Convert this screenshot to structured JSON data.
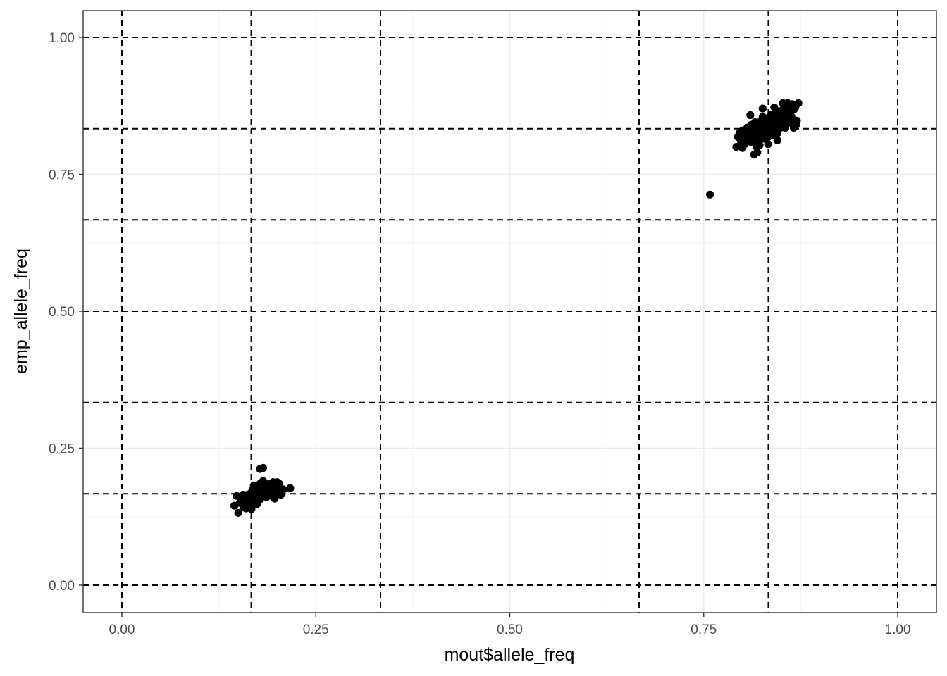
{
  "chart_data": {
    "type": "scatter",
    "xlabel": "mout$allele_freq",
    "ylabel": "emp_allele_freq",
    "xlim": [
      -0.05,
      1.05
    ],
    "ylim": [
      -0.1,
      1.05
    ],
    "x_ticks": [
      0.0,
      0.25,
      0.5,
      0.75,
      1.0
    ],
    "x_tick_labels": [
      "0.00",
      "0.25",
      "0.50",
      "0.75",
      "1.00"
    ],
    "y_ticks": [
      0.0,
      0.25,
      0.5,
      0.75,
      1.0
    ],
    "y_tick_labels": [
      "0.00",
      "0.25",
      "0.50",
      "0.75",
      "1.00"
    ],
    "grid": true,
    "theme": "bw",
    "reference_lines": {
      "style": "dashed",
      "color": "#000000",
      "vertical_x": [
        0.0,
        0.1667,
        0.3333,
        0.6667,
        0.8333,
        1.0
      ],
      "horizontal_y": [
        0.0,
        0.1667,
        0.3333,
        0.5,
        0.6667,
        0.8333,
        1.0
      ]
    },
    "point_color": "#000000",
    "series": [
      {
        "values": [
          [
            0.145,
            0.145
          ],
          [
            0.148,
            0.163
          ],
          [
            0.15,
            0.132
          ],
          [
            0.152,
            0.15
          ],
          [
            0.155,
            0.16
          ],
          [
            0.157,
            0.142
          ],
          [
            0.158,
            0.155
          ],
          [
            0.16,
            0.148
          ],
          [
            0.162,
            0.165
          ],
          [
            0.163,
            0.157
          ],
          [
            0.165,
            0.152
          ],
          [
            0.166,
            0.168
          ],
          [
            0.167,
            0.139
          ],
          [
            0.168,
            0.16
          ],
          [
            0.169,
            0.175
          ],
          [
            0.17,
            0.15
          ],
          [
            0.171,
            0.165
          ],
          [
            0.172,
            0.17
          ],
          [
            0.173,
            0.158
          ],
          [
            0.174,
            0.18
          ],
          [
            0.175,
            0.163
          ],
          [
            0.176,
            0.172
          ],
          [
            0.177,
            0.155
          ],
          [
            0.178,
            0.185
          ],
          [
            0.179,
            0.168
          ],
          [
            0.18,
            0.175
          ],
          [
            0.181,
            0.162
          ],
          [
            0.182,
            0.19
          ],
          [
            0.183,
            0.172
          ],
          [
            0.184,
            0.18
          ],
          [
            0.185,
            0.168
          ],
          [
            0.186,
            0.185
          ],
          [
            0.187,
            0.175
          ],
          [
            0.188,
            0.165
          ],
          [
            0.189,
            0.182
          ],
          [
            0.19,
            0.175
          ],
          [
            0.191,
            0.17
          ],
          [
            0.192,
            0.185
          ],
          [
            0.193,
            0.163
          ],
          [
            0.194,
            0.178
          ],
          [
            0.195,
            0.188
          ],
          [
            0.196,
            0.172
          ],
          [
            0.197,
            0.158
          ],
          [
            0.198,
            0.182
          ],
          [
            0.199,
            0.168
          ],
          [
            0.2,
            0.178
          ],
          [
            0.202,
            0.17
          ],
          [
            0.203,
            0.185
          ],
          [
            0.205,
            0.165
          ],
          [
            0.208,
            0.175
          ],
          [
            0.178,
            0.212
          ],
          [
            0.182,
            0.214
          ],
          [
            0.217,
            0.177
          ],
          [
            0.16,
            0.14
          ],
          [
            0.17,
            0.182
          ],
          [
            0.186,
            0.16
          ],
          [
            0.156,
            0.165
          ],
          [
            0.174,
            0.148
          ],
          [
            0.192,
            0.175
          ],
          [
            0.2,
            0.188
          ]
        ]
      },
      {
        "values": [
          [
            0.758,
            0.713
          ],
          [
            0.792,
            0.8
          ],
          [
            0.794,
            0.818
          ],
          [
            0.796,
            0.825
          ],
          [
            0.798,
            0.81
          ],
          [
            0.8,
            0.83
          ],
          [
            0.802,
            0.815
          ],
          [
            0.803,
            0.805
          ],
          [
            0.805,
            0.822
          ],
          [
            0.806,
            0.835
          ],
          [
            0.808,
            0.812
          ],
          [
            0.809,
            0.828
          ],
          [
            0.81,
            0.818
          ],
          [
            0.811,
            0.84
          ],
          [
            0.812,
            0.808
          ],
          [
            0.813,
            0.826
          ],
          [
            0.814,
            0.835
          ],
          [
            0.815,
            0.815
          ],
          [
            0.816,
            0.845
          ],
          [
            0.817,
            0.822
          ],
          [
            0.818,
            0.832
          ],
          [
            0.819,
            0.812
          ],
          [
            0.82,
            0.84
          ],
          [
            0.821,
            0.828
          ],
          [
            0.822,
            0.803
          ],
          [
            0.823,
            0.835
          ],
          [
            0.824,
            0.848
          ],
          [
            0.825,
            0.82
          ],
          [
            0.826,
            0.838
          ],
          [
            0.827,
            0.815
          ],
          [
            0.828,
            0.845
          ],
          [
            0.829,
            0.83
          ],
          [
            0.83,
            0.852
          ],
          [
            0.831,
            0.825
          ],
          [
            0.832,
            0.84
          ],
          [
            0.833,
            0.818
          ],
          [
            0.834,
            0.848
          ],
          [
            0.835,
            0.835
          ],
          [
            0.836,
            0.858
          ],
          [
            0.837,
            0.828
          ],
          [
            0.838,
            0.845
          ],
          [
            0.839,
            0.822
          ],
          [
            0.84,
            0.852
          ],
          [
            0.841,
            0.838
          ],
          [
            0.842,
            0.86
          ],
          [
            0.843,
            0.832
          ],
          [
            0.844,
            0.848
          ],
          [
            0.845,
            0.825
          ],
          [
            0.846,
            0.855
          ],
          [
            0.847,
            0.84
          ],
          [
            0.848,
            0.865
          ],
          [
            0.849,
            0.835
          ],
          [
            0.85,
            0.852
          ],
          [
            0.851,
            0.845
          ],
          [
            0.852,
            0.868
          ],
          [
            0.853,
            0.838
          ],
          [
            0.854,
            0.858
          ],
          [
            0.855,
            0.848
          ],
          [
            0.856,
            0.872
          ],
          [
            0.857,
            0.842
          ],
          [
            0.858,
            0.862
          ],
          [
            0.859,
            0.85
          ],
          [
            0.86,
            0.875
          ],
          [
            0.861,
            0.845
          ],
          [
            0.862,
            0.865
          ],
          [
            0.863,
            0.855
          ],
          [
            0.864,
            0.878
          ],
          [
            0.865,
            0.85
          ],
          [
            0.866,
            0.868
          ],
          [
            0.867,
            0.838
          ],
          [
            0.868,
            0.872
          ],
          [
            0.87,
            0.848
          ],
          [
            0.872,
            0.88
          ],
          [
            0.866,
            0.835
          ],
          [
            0.858,
            0.88
          ],
          [
            0.815,
            0.786
          ],
          [
            0.819,
            0.79
          ],
          [
            0.81,
            0.858
          ],
          [
            0.826,
            0.87
          ],
          [
            0.8,
            0.798
          ],
          [
            0.833,
            0.805
          ],
          [
            0.845,
            0.812
          ],
          [
            0.838,
            0.83
          ],
          [
            0.826,
            0.855
          ],
          [
            0.852,
            0.88
          ],
          [
            0.869,
            0.84
          ],
          [
            0.818,
            0.8
          ],
          [
            0.806,
            0.828
          ],
          [
            0.841,
            0.872
          ],
          [
            0.855,
            0.835
          ],
          [
            0.83,
            0.815
          ]
        ]
      }
    ]
  }
}
